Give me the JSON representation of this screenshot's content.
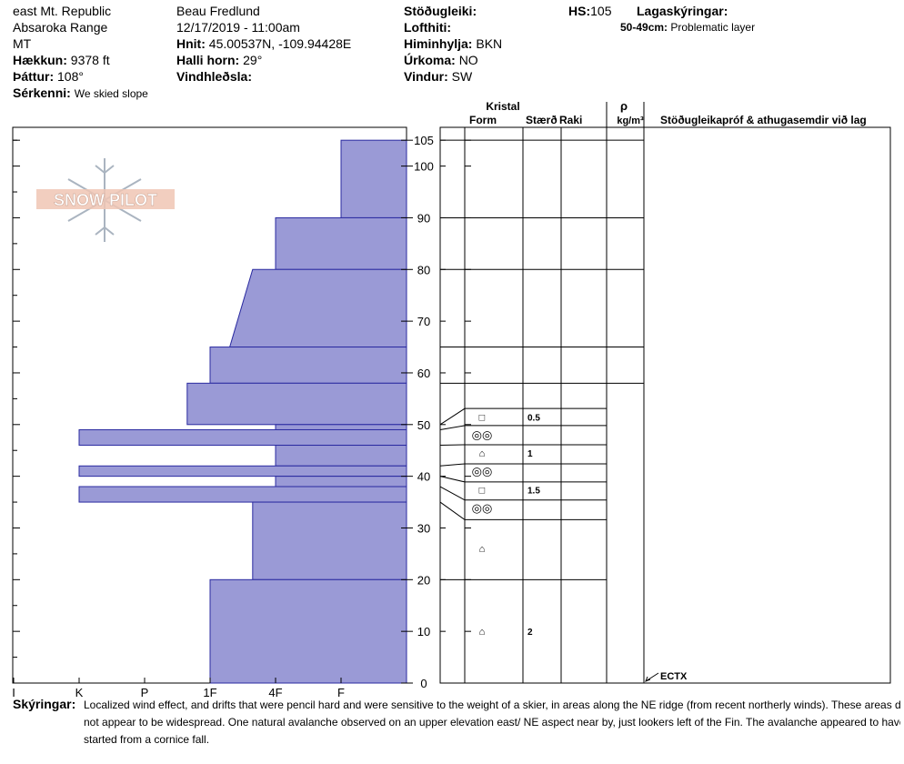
{
  "header": {
    "location": "east Mt. Republic",
    "range": "Absaroka Range",
    "state": "MT",
    "elevation_label": "Hækkun:",
    "elevation_value": "9378 ft",
    "aspect_label": "Þáttur:",
    "aspect_value": "108°",
    "features_label": "Sérkenni:",
    "features_value": "We skied slope",
    "observer": "Beau  Fredlund",
    "datetime": "12/17/2019 - 11:00am",
    "coords_label": "Hnit:",
    "coords_value": "45.00537N, -109.94428E",
    "slope_label": "Halli horn:",
    "slope_value": "29°",
    "wind_loading_label": "Vindhleðsla:",
    "stability_label": "Stöðugleiki:",
    "air_temp_label": "Lofthiti:",
    "sky_label": "Himinhylja:",
    "sky_value": "BKN",
    "precip_label": "Úrkoma:",
    "precip_value": "NO",
    "wind_label": "Vindur:",
    "wind_value": "SW",
    "hs_label": "HS:",
    "hs_value": "105",
    "layer_notes_label": "Lagaskýringar:",
    "layer_note_range": "50-49cm:",
    "layer_note_text": "Problematic layer"
  },
  "logo": {
    "text": "SNOW PILOT"
  },
  "columns": {
    "crystal": "Kristal",
    "form": "Form",
    "size": "Stærð",
    "moisture": "Raki",
    "rho": "ρ",
    "density_unit": "kg/m³",
    "tests": "Stöðugleikapróf & athugasemdir við lag"
  },
  "comments": {
    "label": "Skýringar:",
    "lines": [
      "Localized wind effect, and drifts that were pencil hard and were sensitive to the weight of a skier, in areas along the NE ridge (from recent northerly winds).  These areas did",
      "not appear to be widespread.  One natural avalanche observed on an upper elevation east/ NE aspect near by, just lookers left of the Fin.  The avalanche appeared to have",
      "started from a cornice fall."
    ]
  },
  "test_result": "ECTX",
  "colors": {
    "hardness_fill": "#9a9ad6",
    "hardness_stroke": "#2a2aa0",
    "grid": "#000000"
  },
  "chart_data": {
    "type": "bar",
    "orientation": "horizontal",
    "title": "",
    "xlabel": "",
    "ylabel": "",
    "x_ticks": [
      "I",
      "K",
      "P",
      "1F",
      "4F",
      "F"
    ],
    "y_ticks": [
      0,
      10,
      20,
      30,
      40,
      50,
      60,
      70,
      80,
      90,
      100,
      105
    ],
    "ylim": [
      0,
      105
    ],
    "hardness_scale": "F=1, 4F=2, 1F=3, P=4, K=5, I=6",
    "layers": [
      {
        "top": 105,
        "bottom": 90,
        "hardness": 1
      },
      {
        "top": 90,
        "bottom": 80,
        "hardness": 2
      },
      {
        "top": 80,
        "bottom": 65,
        "hardness_top": 2.35,
        "hardness_bottom": 2.7
      },
      {
        "top": 65,
        "bottom": 58,
        "hardness": 3
      },
      {
        "top": 58,
        "bottom": 50,
        "hardness": 3.35
      },
      {
        "top": 50,
        "bottom": 49,
        "hardness": 2
      },
      {
        "top": 49,
        "bottom": 46,
        "hardness": 5
      },
      {
        "top": 46,
        "bottom": 42,
        "hardness": 2
      },
      {
        "top": 42,
        "bottom": 40,
        "hardness": 5
      },
      {
        "top": 40,
        "bottom": 38,
        "hardness": 2
      },
      {
        "top": 38,
        "bottom": 35,
        "hardness": 5
      },
      {
        "top": 35,
        "bottom": 20,
        "hardness": 2.35
      },
      {
        "top": 20,
        "bottom": 0,
        "hardness": 3
      }
    ],
    "grain_rows": [
      {
        "height": 51.5,
        "form": "□",
        "size": "0.5"
      },
      {
        "height": 47.9,
        "form": "◎◎",
        "size": ""
      },
      {
        "height": 44.5,
        "form": "⌂",
        "size": "1"
      },
      {
        "height": 40.9,
        "form": "◎◎",
        "size": ""
      },
      {
        "height": 37.4,
        "form": "□",
        "size": "1.5"
      },
      {
        "height": 33.8,
        "form": "◎◎",
        "size": ""
      },
      {
        "height": 26,
        "form": "⌂",
        "size": ""
      },
      {
        "height": 10,
        "form": "⌂",
        "size": "2"
      }
    ]
  }
}
